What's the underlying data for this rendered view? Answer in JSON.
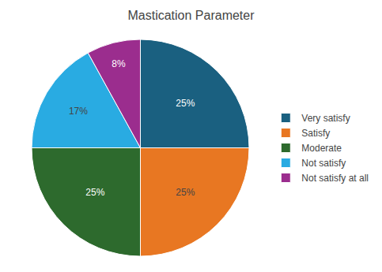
{
  "chart_data": {
    "type": "pie",
    "title": "Mastication Parameter",
    "categories": [
      "Very satisfy",
      "Satisfy",
      "Moderate",
      "Not satisfy",
      "Not satisfy at all"
    ],
    "values": [
      25,
      25,
      25,
      17,
      8
    ],
    "value_labels": [
      "25%",
      "25%",
      "25%",
      "17%",
      "8%"
    ],
    "colors": [
      "#1a6080",
      "#e87722",
      "#2d6a2d",
      "#29abe2",
      "#9b2d8e"
    ],
    "data_labels": true,
    "legend": "right"
  }
}
